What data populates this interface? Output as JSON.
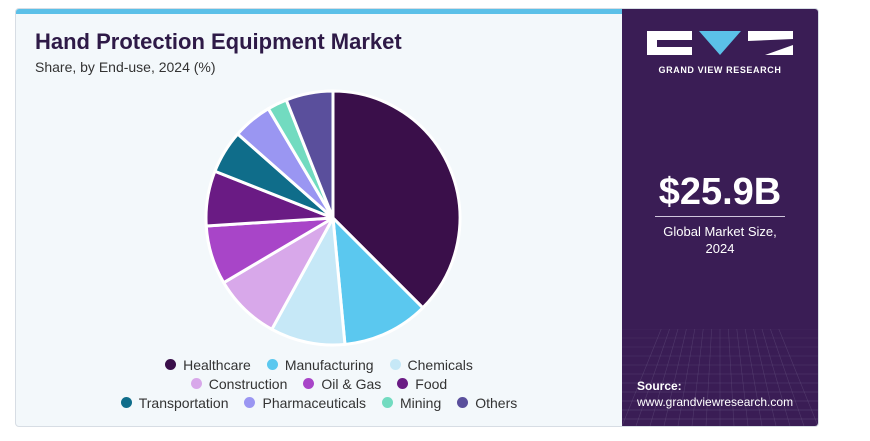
{
  "header": {
    "title": "Hand Protection Equipment Market",
    "subtitle": "Share, by End-use, 2024 (%)"
  },
  "brand": {
    "logo_text": "GRAND VIEW RESEARCH",
    "logo_icon": "gvr-logo-icon"
  },
  "market": {
    "value": "$25.9B",
    "label_line1": "Global Market Size,",
    "label_line2": "2024"
  },
  "source": {
    "label": "Source:",
    "url": "www.grandviewresearch.com"
  },
  "legend_rows": [
    [
      0,
      1,
      2
    ],
    [
      3,
      4,
      5
    ],
    [
      6,
      7,
      8,
      9
    ]
  ],
  "chart_data": {
    "type": "pie",
    "title": "Hand Protection Equipment Market",
    "subtitle": "Share, by End-use, 2024 (%)",
    "legend_position": "bottom",
    "start_angle_deg": 0,
    "direction": "clockwise",
    "slices": [
      {
        "name": "Healthcare",
        "value": 37.5,
        "color": "#3a0f4a"
      },
      {
        "name": "Manufacturing",
        "value": 11.0,
        "color": "#5bc8ef"
      },
      {
        "name": "Chemicals",
        "value": 9.5,
        "color": "#c6e8f7"
      },
      {
        "name": "Construction",
        "value": 8.5,
        "color": "#d8a8ea"
      },
      {
        "name": "Oil & Gas",
        "value": 7.5,
        "color": "#a845c8"
      },
      {
        "name": "Food",
        "value": 7.0,
        "color": "#6a1b84"
      },
      {
        "name": "Transportation",
        "value": 5.5,
        "color": "#0f6d8a"
      },
      {
        "name": "Pharmaceuticals",
        "value": 5.0,
        "color": "#9a96f2"
      },
      {
        "name": "Mining",
        "value": 2.5,
        "color": "#72dbc0"
      },
      {
        "name": "Others",
        "value": 6.0,
        "color": "#5a4f9c"
      }
    ]
  }
}
